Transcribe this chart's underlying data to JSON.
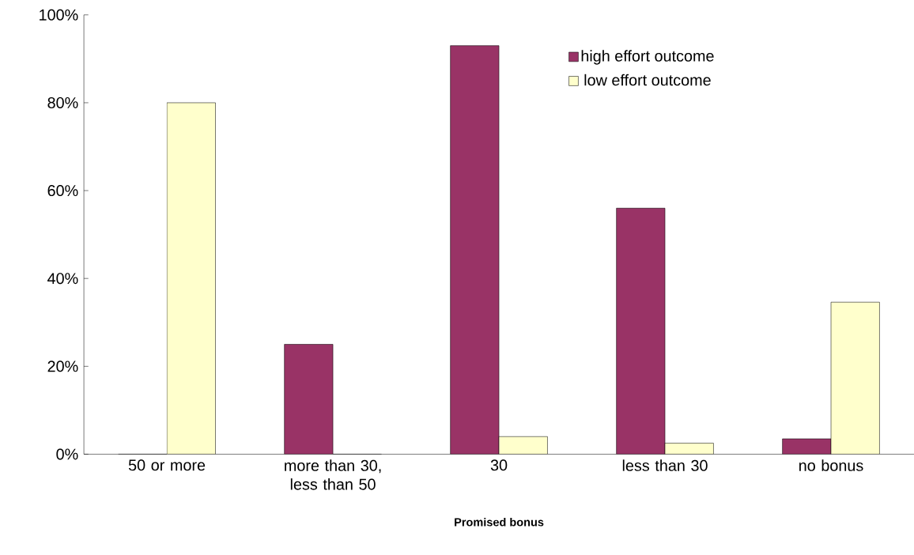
{
  "chart_data": {
    "type": "bar",
    "xlabel": "Promised bonus",
    "categories": [
      "50 or more",
      "more than 30, less than 50",
      "30",
      "less than 30",
      "no bonus"
    ],
    "series": [
      {
        "name": "high effort outcome",
        "color": "#993366",
        "values": [
          0,
          25,
          93,
          56,
          3.5
        ]
      },
      {
        "name": "low effort outcome",
        "color": "#ffffcc",
        "values": [
          80,
          0,
          4,
          2.5,
          34.6
        ]
      }
    ],
    "ylim": [
      0,
      100
    ],
    "yticks": [
      {
        "value": 0,
        "label": "0%"
      },
      {
        "value": 20,
        "label": "20%"
      },
      {
        "value": 40,
        "label": "40%"
      },
      {
        "value": 60,
        "label": "60%"
      },
      {
        "value": 80,
        "label": "80%"
      },
      {
        "value": 100,
        "label": "100%"
      }
    ],
    "grid": false,
    "legend": "top right"
  }
}
